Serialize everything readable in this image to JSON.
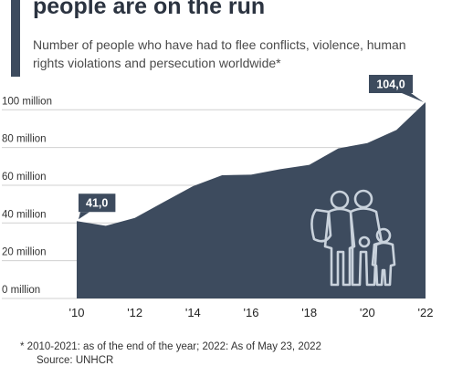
{
  "header": {
    "title": "people are on the run",
    "subtitle": "Number of people who have had to flee conflicts, violence, human rights violations and persecution worldwide*"
  },
  "chart_data": {
    "type": "area",
    "x": [
      2010,
      2011,
      2012,
      2013,
      2014,
      2015,
      2016,
      2017,
      2018,
      2019,
      2020,
      2021,
      2022
    ],
    "values": [
      41.0,
      38.5,
      42.7,
      51.2,
      59.5,
      65.3,
      65.6,
      68.5,
      70.8,
      79.5,
      82.4,
      89.3,
      104.0
    ],
    "y_unit": "million",
    "ylim": [
      0,
      104
    ],
    "y_ticks": [
      0,
      20,
      40,
      60,
      80,
      100
    ],
    "y_tick_labels": [
      "0 million",
      "20 million",
      "40 million",
      "60 million",
      "80 million",
      "100 million"
    ],
    "x_ticks": [
      2010,
      2012,
      2014,
      2016,
      2018,
      2020,
      2022
    ],
    "x_tick_labels": [
      "'10",
      "'12",
      "'14",
      "'16",
      "'18",
      "'20",
      "'22"
    ],
    "grid": true,
    "annotations": [
      {
        "x": 2010,
        "label": "41,0"
      },
      {
        "x": 2022,
        "label": "104,0"
      }
    ]
  },
  "colors": {
    "area": "#3d4b5e",
    "grid": "#d0d0d0",
    "callout": "#3d4b5e",
    "icon": "#c9d2dc"
  },
  "icon": "refugee-family-icon",
  "footer": {
    "footnote": "* 2010-2021: as of the end of the year; 2022: As of May 23, 2022",
    "source": "Source: UNHCR"
  }
}
